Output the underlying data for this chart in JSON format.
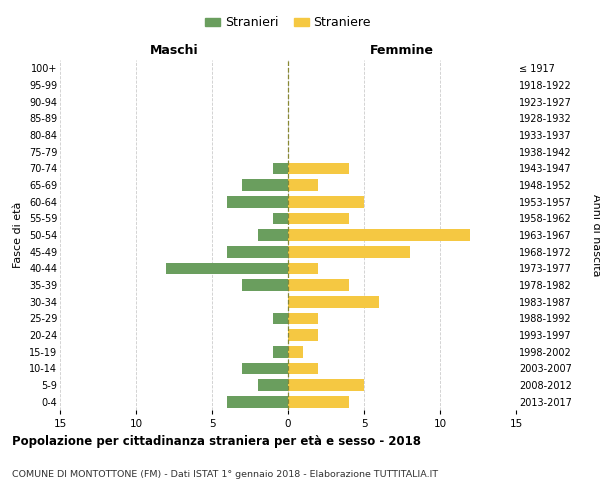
{
  "age_groups": [
    "0-4",
    "5-9",
    "10-14",
    "15-19",
    "20-24",
    "25-29",
    "30-34",
    "35-39",
    "40-44",
    "45-49",
    "50-54",
    "55-59",
    "60-64",
    "65-69",
    "70-74",
    "75-79",
    "80-84",
    "85-89",
    "90-94",
    "95-99",
    "100+"
  ],
  "birth_years": [
    "2013-2017",
    "2008-2012",
    "2003-2007",
    "1998-2002",
    "1993-1997",
    "1988-1992",
    "1983-1987",
    "1978-1982",
    "1973-1977",
    "1968-1972",
    "1963-1967",
    "1958-1962",
    "1953-1957",
    "1948-1952",
    "1943-1947",
    "1938-1942",
    "1933-1937",
    "1928-1932",
    "1923-1927",
    "1918-1922",
    "≤ 1917"
  ],
  "maschi": [
    4,
    2,
    3,
    1,
    0,
    1,
    0,
    3,
    8,
    4,
    2,
    1,
    4,
    3,
    1,
    0,
    0,
    0,
    0,
    0,
    0
  ],
  "femmine": [
    4,
    5,
    2,
    1,
    2,
    2,
    6,
    4,
    2,
    8,
    12,
    4,
    5,
    2,
    4,
    0,
    0,
    0,
    0,
    0,
    0
  ],
  "color_maschi": "#6a9e5e",
  "color_femmine": "#f5c842",
  "title": "Popolazione per cittadinanza straniera per età e sesso - 2018",
  "subtitle": "COMUNE DI MONTOTTONE (FM) - Dati ISTAT 1° gennaio 2018 - Elaborazione TUTTITALIA.IT",
  "label_maschi": "Stranieri",
  "label_femmine": "Straniere",
  "xlabel_left": "Maschi",
  "xlabel_right": "Femmine",
  "ylabel_left": "Fasce di età",
  "ylabel_right": "Anni di nascita",
  "xlim": 15,
  "background_color": "#ffffff",
  "grid_color": "#cccccc"
}
